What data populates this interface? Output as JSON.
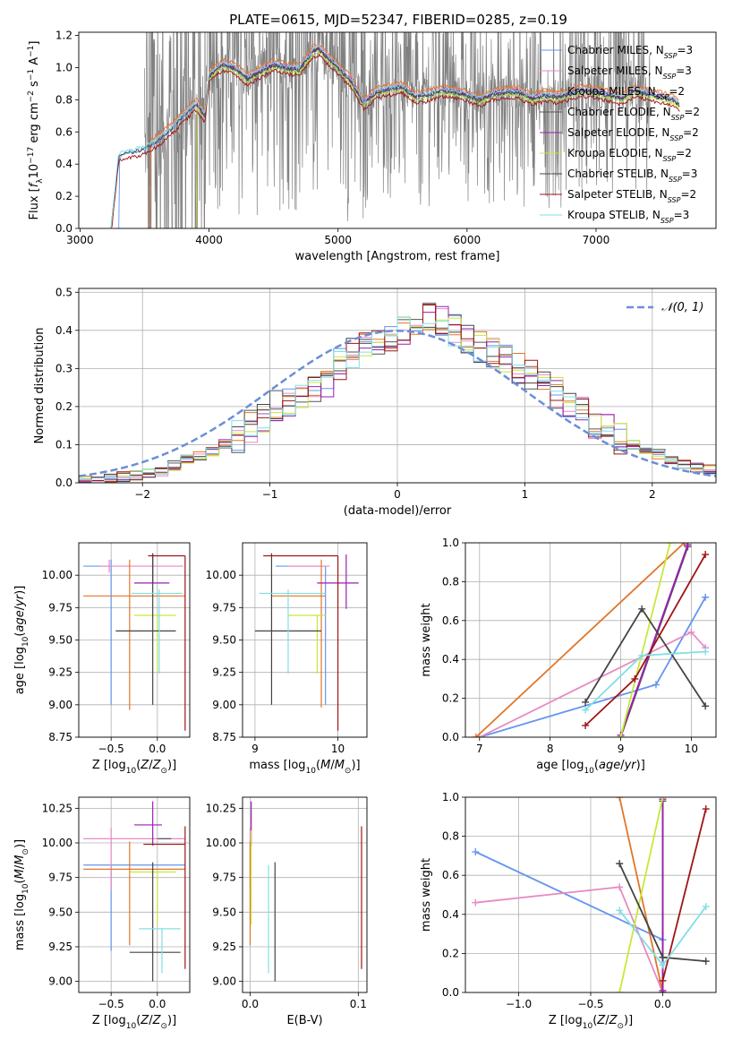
{
  "figure_title": "PLATE=0615, MJD=52347, FIBERID=0285, z=0.19",
  "colors": {
    "grey": "#808080",
    "chabrier_miles": "#6495ed",
    "salpeter_miles": "#e78ac3",
    "kroupa_miles": "#e1762a",
    "chabrier_elodie": "#555555",
    "salpeter_elodie": "#9a1fb0",
    "kroupa_elodie": "#c8e83a",
    "chabrier_stelib": "#444444",
    "salpeter_stelib": "#a01414",
    "kroupa_stelib": "#80dfe4"
  },
  "chart_data": [
    {
      "id": "spectrum",
      "type": "line",
      "xlabel": "wavelength [Angstrom, rest frame]",
      "ylabel": "Flux [f_λ 10^-17 erg cm^-2 s^-1 A^-1]",
      "xlim": [
        2990,
        7930
      ],
      "ylim": [
        0.0,
        1.22
      ],
      "xticks": [
        3000,
        4000,
        5000,
        6000,
        7000
      ],
      "yticks": [
        0.0,
        0.2,
        0.4,
        0.6,
        0.8,
        1.0,
        1.2
      ],
      "grid": false,
      "legend_position": "upper-right",
      "data_x": [
        3240,
        3300,
        3400,
        3500,
        3600,
        3700,
        3800,
        3900,
        3970,
        4000,
        4100,
        4200,
        4300,
        4400,
        4500,
        4600,
        4700,
        4800,
        4850,
        4900,
        5000,
        5100,
        5200,
        5300,
        5400,
        5500,
        5600,
        5700,
        5800,
        5900,
        6000,
        6100,
        6200,
        6300,
        6400,
        6500,
        6600,
        6700,
        6800,
        6900,
        7000,
        7100,
        7200,
        7300,
        7400,
        7500,
        7600,
        7650
      ],
      "model_y": [
        0.0,
        0.46,
        0.48,
        0.5,
        0.55,
        0.62,
        0.7,
        0.78,
        0.7,
        0.95,
        1.02,
        1.0,
        0.93,
        0.98,
        1.02,
        1.0,
        0.99,
        1.1,
        1.12,
        1.08,
        1.0,
        0.92,
        0.78,
        0.85,
        0.87,
        0.88,
        0.82,
        0.83,
        0.86,
        0.85,
        0.83,
        0.8,
        0.84,
        0.85,
        0.85,
        0.81,
        0.83,
        0.82,
        0.84,
        0.86,
        0.85,
        0.83,
        0.81,
        0.86,
        0.84,
        0.82,
        0.8,
        0.77
      ],
      "data_start_x": 3500,
      "data_end_x": 7420,
      "series": [
        {
          "name": "Chabrier MILES, N_SSP=3",
          "color_key": "chabrier_miles",
          "start_x": 3300,
          "offset": -0.01
        },
        {
          "name": "Salpeter MILES, N_SSP=3",
          "color_key": "salpeter_miles",
          "start_x": 3540,
          "offset": 0.015
        },
        {
          "name": "Kroupa MILES, N_SSP=2",
          "color_key": "kroupa_miles",
          "start_x": 3540,
          "offset": 0.03
        },
        {
          "name": "Chabrier ELODIE, N_SSP=2",
          "color_key": "chabrier_elodie",
          "start_x": 3900,
          "offset": 0.0
        },
        {
          "name": "Salpeter ELODIE, N_SSP=2",
          "color_key": "salpeter_elodie",
          "start_x": 3900,
          "offset": 0.005
        },
        {
          "name": "Kroupa ELODIE, N_SSP=2",
          "color_key": "kroupa_elodie",
          "start_x": 3900,
          "offset": -0.02
        },
        {
          "name": "Chabrier STELIB, N_SSP=3",
          "color_key": "chabrier_stelib",
          "start_x": 3240,
          "offset": -0.005
        },
        {
          "name": "Salpeter STELIB, N_SSP=2",
          "color_key": "salpeter_stelib",
          "start_x": 3240,
          "offset": -0.04
        },
        {
          "name": "Kroupa STELIB, N_SSP=3",
          "color_key": "kroupa_stelib",
          "start_x": 3240,
          "offset": 0.01
        }
      ]
    },
    {
      "id": "residuals",
      "type": "line",
      "xlabel": "(data-model)/error",
      "ylabel": "Normed distribution",
      "xlim": [
        -2.5,
        2.5
      ],
      "ylim": [
        0.0,
        0.51
      ],
      "xticks": [
        -2,
        -1,
        0,
        1,
        2
      ],
      "yticks": [
        0.0,
        0.1,
        0.2,
        0.3,
        0.4,
        0.5
      ],
      "grid": true,
      "legend": "𝒩(0, 1)",
      "legend_position": "upper-right",
      "bin_edges_start": -2.5,
      "bin_width": 0.1,
      "histogram_base": [
        0.005,
        0.008,
        0.012,
        0.016,
        0.02,
        0.024,
        0.03,
        0.045,
        0.06,
        0.072,
        0.08,
        0.1,
        0.12,
        0.15,
        0.17,
        0.2,
        0.215,
        0.23,
        0.25,
        0.27,
        0.31,
        0.34,
        0.36,
        0.37,
        0.37,
        0.4,
        0.42,
        0.43,
        0.42,
        0.4,
        0.38,
        0.36,
        0.34,
        0.33,
        0.3,
        0.28,
        0.26,
        0.24,
        0.21,
        0.19,
        0.16,
        0.14,
        0.12,
        0.1,
        0.085,
        0.075,
        0.06,
        0.05,
        0.04,
        0.035
      ],
      "gaussian": {
        "mean": 0,
        "sigma": 1
      }
    },
    {
      "id": "age_vs_Z",
      "type": "scatter",
      "xlabel": "Z [log10(Z/Z⊙)]",
      "ylabel": "age  [log10(age/yr)]",
      "xlim": [
        -0.85,
        0.35
      ],
      "ylim": [
        8.75,
        10.25
      ],
      "xticks": [
        -0.5,
        0.0
      ],
      "xticklabels": [
        "−0.5",
        "0.0"
      ],
      "yticks": [
        8.75,
        9.0,
        9.25,
        9.5,
        9.75,
        10.0
      ],
      "grid": true,
      "points": [
        {
          "color_key": "chabrier_miles",
          "x": -0.5,
          "xerr": [
            0.3,
            0.0
          ],
          "y": 10.07,
          "yerr": [
            1.07,
            0.05
          ]
        },
        {
          "color_key": "salpeter_miles",
          "x": -0.52,
          "xerr": [
            0.1,
            0.8
          ],
          "y": 10.07,
          "yerr": [
            0.05,
            0.05
          ]
        },
        {
          "color_key": "kroupa_miles",
          "x": -0.3,
          "xerr": [
            0.5,
            0.6
          ],
          "y": 9.84,
          "yerr": [
            0.88,
            0.28
          ]
        },
        {
          "color_key": "chabrier_elodie",
          "x": -0.05,
          "xerr": [
            0.0,
            0.0
          ],
          "y": 10.07,
          "yerr": [
            0.0,
            0.0
          ]
        },
        {
          "color_key": "salpeter_elodie",
          "x": -0.05,
          "xerr": [
            0.2,
            0.18
          ],
          "y": 9.94,
          "yerr": [
            0.0,
            0.22
          ]
        },
        {
          "color_key": "kroupa_elodie",
          "x": 0.0,
          "xerr": [
            0.25,
            0.2
          ],
          "y": 9.69,
          "yerr": [
            0.44,
            0.0
          ]
        },
        {
          "color_key": "chabrier_stelib",
          "x": -0.05,
          "xerr": [
            0.4,
            0.25
          ],
          "y": 9.57,
          "yerr": [
            0.57,
            0.6
          ]
        },
        {
          "color_key": "salpeter_stelib",
          "x": 0.3,
          "xerr": [
            0.4,
            0.0
          ],
          "y": 10.15,
          "yerr": [
            1.35,
            0.0
          ]
        },
        {
          "color_key": "kroupa_stelib",
          "x": 0.02,
          "xerr": [
            0.3,
            0.25
          ],
          "y": 9.86,
          "yerr": [
            0.62,
            0.03
          ]
        }
      ]
    },
    {
      "id": "age_vs_mass",
      "type": "scatter",
      "xlabel": "mass [log10(M/M⊙)]",
      "ylabel": "",
      "xlim": [
        8.85,
        10.35
      ],
      "ylim": [
        8.75,
        10.25
      ],
      "xticks": [
        9,
        10
      ],
      "xticklabels": [
        "9",
        "10"
      ],
      "yticks": [
        8.75,
        9.0,
        9.25,
        9.5,
        9.75,
        10.0
      ],
      "grid": true,
      "points": [
        {
          "color_key": "chabrier_miles",
          "x": 9.85,
          "xerr": [
            0.6,
            0.0
          ],
          "y": 10.07,
          "yerr": [
            1.07,
            0.0
          ]
        },
        {
          "color_key": "salpeter_miles",
          "x": 9.8,
          "xerr": [
            0.4,
            0.1
          ],
          "y": 10.07,
          "yerr": [
            0.0,
            0.0
          ]
        },
        {
          "color_key": "kroupa_miles",
          "x": 9.8,
          "xerr": [
            0.6,
            0.05
          ],
          "y": 9.84,
          "yerr": [
            0.86,
            0.28
          ]
        },
        {
          "color_key": "chabrier_elodie",
          "x": 9.8,
          "xerr": [
            0.0,
            0.0
          ],
          "y": 10.07,
          "yerr": [
            0.0,
            0.0
          ]
        },
        {
          "color_key": "salpeter_elodie",
          "x": 10.1,
          "xerr": [
            0.35,
            0.15
          ],
          "y": 9.94,
          "yerr": [
            0.2,
            0.22
          ]
        },
        {
          "color_key": "kroupa_elodie",
          "x": 9.75,
          "xerr": [
            0.35,
            0.1
          ],
          "y": 9.69,
          "yerr": [
            0.45,
            0.0
          ]
        },
        {
          "color_key": "chabrier_stelib",
          "x": 9.2,
          "xerr": [
            0.2,
            0.6
          ],
          "y": 9.57,
          "yerr": [
            0.57,
            0.6
          ]
        },
        {
          "color_key": "salpeter_stelib",
          "x": 10.0,
          "xerr": [
            0.9,
            0.0
          ],
          "y": 10.15,
          "yerr": [
            1.35,
            0.0
          ]
        },
        {
          "color_key": "kroupa_stelib",
          "x": 9.4,
          "xerr": [
            0.35,
            0.45
          ],
          "y": 9.86,
          "yerr": [
            0.62,
            0.03
          ]
        }
      ]
    },
    {
      "id": "weight_vs_age",
      "type": "line",
      "xlabel": "age  [log10(age/yr)]",
      "ylabel": "mass weight",
      "xlim": [
        6.8,
        10.35
      ],
      "ylim": [
        0.0,
        1.0
      ],
      "xticks": [
        7,
        8,
        9,
        10
      ],
      "yticks": [
        0.0,
        0.2,
        0.4,
        0.6,
        0.8,
        1.0
      ],
      "grid": true,
      "series": [
        {
          "color_key": "chabrier_miles",
          "x": [
            7.0,
            9.5,
            10.2
          ],
          "y": [
            0.0,
            0.27,
            0.72
          ]
        },
        {
          "color_key": "salpeter_miles",
          "x": [
            7.0,
            10.0,
            10.2
          ],
          "y": [
            0.0,
            0.54,
            0.46
          ]
        },
        {
          "color_key": "kroupa_miles",
          "x": [
            6.95,
            9.9
          ],
          "y": [
            0.0,
            1.0
          ]
        },
        {
          "color_key": "chabrier_elodie",
          "x": [
            9.0,
            9.95
          ],
          "y": [
            0.0,
            0.98
          ]
        },
        {
          "color_key": "salpeter_elodie",
          "x": [
            9.0,
            9.95
          ],
          "y": [
            0.01,
            0.99
          ]
        },
        {
          "color_key": "kroupa_elodie",
          "x": [
            9.0,
            9.7
          ],
          "y": [
            0.0,
            1.0
          ]
        },
        {
          "color_key": "chabrier_stelib",
          "x": [
            8.5,
            9.3,
            10.2
          ],
          "y": [
            0.18,
            0.66,
            0.16
          ]
        },
        {
          "color_key": "salpeter_stelib",
          "x": [
            8.5,
            9.2,
            10.2
          ],
          "y": [
            0.06,
            0.3,
            0.94
          ]
        },
        {
          "color_key": "kroupa_stelib",
          "x": [
            8.5,
            9.3,
            10.2
          ],
          "y": [
            0.14,
            0.42,
            0.44
          ]
        }
      ]
    },
    {
      "id": "mass_vs_Z",
      "type": "scatter",
      "xlabel": "Z [log10(Z/Z⊙)]",
      "ylabel": "mass [log10(M/M⊙)]",
      "xlim": [
        -0.85,
        0.35
      ],
      "ylim": [
        8.92,
        10.33
      ],
      "xticks": [
        -0.5,
        0.0
      ],
      "xticklabels": [
        "−0.5",
        "0.0"
      ],
      "yticks": [
        9.0,
        9.25,
        9.5,
        9.75,
        10.0,
        10.25
      ],
      "grid": true,
      "points": [
        {
          "color_key": "chabrier_miles",
          "x": -0.5,
          "xerr": [
            0.3,
            0.8
          ],
          "y": 9.84,
          "yerr": [
            0.62,
            0.0
          ]
        },
        {
          "color_key": "salpeter_miles",
          "x": -0.5,
          "xerr": [
            0.3,
            0.8
          ],
          "y": 10.03,
          "yerr": [
            0.37,
            0.08
          ]
        },
        {
          "color_key": "kroupa_miles",
          "x": -0.3,
          "xerr": [
            0.5,
            0.6
          ],
          "y": 9.81,
          "yerr": [
            0.55,
            0.2
          ]
        },
        {
          "color_key": "chabrier_elodie",
          "x": 0.0,
          "xerr": [
            0.0,
            0.15
          ],
          "y": 10.03,
          "yerr": [
            0.0,
            0.0
          ]
        },
        {
          "color_key": "salpeter_elodie",
          "x": -0.05,
          "xerr": [
            0.2,
            0.1
          ],
          "y": 10.13,
          "yerr": [
            0.15,
            0.17
          ]
        },
        {
          "color_key": "kroupa_elodie",
          "x": 0.0,
          "xerr": [
            0.3,
            0.2
          ],
          "y": 9.79,
          "yerr": [
            0.38,
            0.0
          ]
        },
        {
          "color_key": "chabrier_stelib",
          "x": -0.05,
          "xerr": [
            0.25,
            0.3
          ],
          "y": 9.21,
          "yerr": [
            0.21,
            0.65
          ]
        },
        {
          "color_key": "salpeter_stelib",
          "x": 0.3,
          "xerr": [
            0.45,
            0.0
          ],
          "y": 9.99,
          "yerr": [
            0.9,
            0.13
          ]
        },
        {
          "color_key": "kroupa_stelib",
          "x": 0.05,
          "xerr": [
            0.25,
            0.2
          ],
          "y": 9.38,
          "yerr": [
            0.32,
            0.0
          ]
        }
      ]
    },
    {
      "id": "mass_vs_ebv",
      "type": "scatter",
      "xlabel": "E(B-V)",
      "ylabel": "",
      "xlim": [
        -0.007,
        0.108
      ],
      "ylim": [
        8.92,
        10.33
      ],
      "xticks": [
        0.0,
        0.1
      ],
      "xticklabels": [
        "0.0",
        "0.1"
      ],
      "yticks": [
        9.0,
        9.25,
        9.5,
        9.75,
        10.0,
        10.25
      ],
      "grid": true,
      "points": [
        {
          "color_key": "chabrier_miles",
          "x": 0.0,
          "y": 9.84,
          "yerr": [
            0.0,
            0.0
          ]
        },
        {
          "color_key": "salpeter_miles",
          "x": 0.0,
          "y": 10.03,
          "yerr": [
            0.37,
            0.08
          ]
        },
        {
          "color_key": "kroupa_miles",
          "x": 0.0,
          "y": 9.81,
          "yerr": [
            0.55,
            0.2
          ]
        },
        {
          "color_key": "chabrier_elodie",
          "x": 0.0,
          "y": 10.03,
          "yerr": [
            0.0,
            0.0
          ]
        },
        {
          "color_key": "salpeter_elodie",
          "x": 0.001,
          "y": 10.13,
          "yerr": [
            0.15,
            0.17
          ]
        },
        {
          "color_key": "kroupa_elodie",
          "x": 0.001,
          "y": 9.79,
          "yerr": [
            0.38,
            0.3
          ]
        },
        {
          "color_key": "chabrier_stelib",
          "x": 0.023,
          "y": 9.21,
          "yerr": [
            0.21,
            0.65
          ]
        },
        {
          "color_key": "salpeter_stelib",
          "x": 0.103,
          "y": 9.99,
          "yerr": [
            0.9,
            0.13
          ]
        },
        {
          "color_key": "kroupa_stelib",
          "x": 0.017,
          "y": 9.38,
          "yerr": [
            0.32,
            0.46
          ]
        }
      ]
    },
    {
      "id": "weight_vs_Z",
      "type": "line",
      "xlabel": "Z [log10(Z/Z⊙)]",
      "ylabel": "mass weight",
      "xlim": [
        -1.37,
        0.37
      ],
      "ylim": [
        0.0,
        1.0
      ],
      "xticks": [
        -1.0,
        -0.5,
        0.0
      ],
      "xticklabels": [
        "−1.0",
        "−0.5",
        "0.0"
      ],
      "yticks": [
        0.0,
        0.2,
        0.4,
        0.6,
        0.8,
        1.0
      ],
      "grid": true,
      "series": [
        {
          "color_key": "chabrier_miles",
          "x": [
            -1.3,
            0.0
          ],
          "y": [
            0.72,
            0.27
          ]
        },
        {
          "color_key": "salpeter_miles",
          "x": [
            -1.3,
            -0.3,
            0.0
          ],
          "y": [
            0.46,
            0.54,
            0.0
          ]
        },
        {
          "color_key": "kroupa_miles",
          "x": [
            -0.3,
            0.0
          ],
          "y": [
            1.0,
            0.0
          ]
        },
        {
          "color_key": "chabrier_elodie",
          "x": [
            0.0,
            0.0
          ],
          "y": [
            0.0,
            0.98
          ]
        },
        {
          "color_key": "salpeter_elodie",
          "x": [
            0.0,
            0.0
          ],
          "y": [
            0.01,
            0.99
          ]
        },
        {
          "color_key": "kroupa_elodie",
          "x": [
            -0.3,
            0.0
          ],
          "y": [
            0.0,
            1.0
          ]
        },
        {
          "color_key": "chabrier_stelib",
          "x": [
            -0.3,
            0.0,
            0.3
          ],
          "y": [
            0.66,
            0.18,
            0.16
          ]
        },
        {
          "color_key": "salpeter_stelib",
          "x": [
            0.0,
            0.3
          ],
          "y": [
            0.06,
            0.94
          ]
        },
        {
          "color_key": "kroupa_stelib",
          "x": [
            -0.3,
            0.0,
            0.3
          ],
          "y": [
            0.42,
            0.14,
            0.44
          ]
        }
      ]
    }
  ]
}
